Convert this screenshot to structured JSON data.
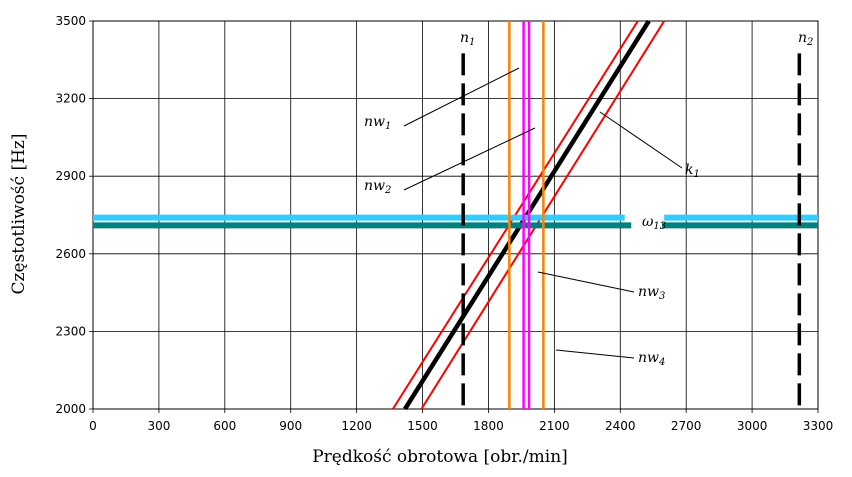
{
  "chart_data": {
    "type": "line",
    "title": "",
    "xlabel": "Prędkość obrotowa [obr./min]",
    "ylabel": "Częstotliwość [Hz]",
    "xlim": [
      0,
      3300
    ],
    "ylim": [
      2000,
      3500
    ],
    "x_ticks": [
      "0",
      "300",
      "600",
      "900",
      "1200",
      "1500",
      "1800",
      "2100",
      "2400",
      "2700",
      "3000",
      "3300"
    ],
    "y_ticks": [
      "2000",
      "2300",
      "2600",
      "2900",
      "3200",
      "3500"
    ],
    "grid": true,
    "series": [
      {
        "name": "k",
        "subscript": "1",
        "kind": "sloped",
        "color": "#000000",
        "points": [
          [
            1420,
            2000
          ],
          [
            2530,
            3500
          ]
        ]
      },
      {
        "name": "",
        "kind": "sloped",
        "color": "#ff0000",
        "points": [
          [
            1365,
            2000
          ],
          [
            2480,
            3500
          ]
        ]
      },
      {
        "name": "",
        "kind": "sloped",
        "color": "#ff0000",
        "points": [
          [
            1495,
            2000
          ],
          [
            2600,
            3500
          ]
        ]
      },
      {
        "name": "ω",
        "subscript": "13",
        "kind": "horizontal",
        "color": "#33ccff",
        "y": 2740
      },
      {
        "name": "",
        "kind": "horizontal",
        "color": "#008080",
        "y": 2710
      },
      {
        "name": "n",
        "subscript": "1",
        "kind": "vertical-dashed",
        "color": "#000000",
        "x": 1685
      },
      {
        "name": "n",
        "subscript": "2",
        "kind": "vertical-dashed",
        "color": "#000000",
        "x": 3215
      },
      {
        "name": "nw",
        "subscript": "1",
        "kind": "vertical",
        "color": "#ff8000",
        "x": 1895
      },
      {
        "name": "nw",
        "subscript": "2",
        "kind": "vertical",
        "color": "#ff00ff",
        "x": 1960
      },
      {
        "name": "nw",
        "subscript": "3",
        "kind": "vertical",
        "color": "#ff00ff",
        "x": 1985
      },
      {
        "name": "nw",
        "subscript": "4",
        "kind": "vertical",
        "color": "#ff8000",
        "x": 2050
      }
    ],
    "annotations": [
      {
        "name": "n",
        "subscript": "1"
      },
      {
        "name": "n",
        "subscript": "2"
      },
      {
        "name": "nw",
        "subscript": "1"
      },
      {
        "name": "nw",
        "subscript": "2"
      },
      {
        "name": "nw",
        "subscript": "3"
      },
      {
        "name": "nw",
        "subscript": "4"
      },
      {
        "name": "k",
        "subscript": "1"
      },
      {
        "name": "ω",
        "subscript": "13"
      }
    ]
  }
}
